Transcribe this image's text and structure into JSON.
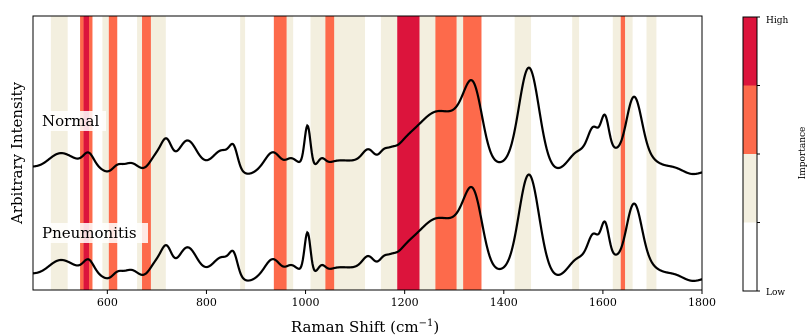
{
  "chart_data": {
    "type": "line",
    "xlabel": "Raman Shift (cm$^{-1}$)",
    "xlabel_main": "Raman Shift (cm",
    "xlabel_sup": "−1",
    "xlabel_close": ")",
    "ylabel": "Arbitrary Intensity",
    "xlim": [
      450,
      1800
    ],
    "ylim": [
      0,
      1
    ],
    "x_ticks": [
      600,
      800,
      1000,
      1200,
      1400,
      1600,
      1800
    ],
    "x_tick_labels": [
      "600",
      "800",
      "1000",
      "1200",
      "1400",
      "1600",
      "1800"
    ],
    "traces": [
      {
        "label": "Normal",
        "offset": 0.44
      },
      {
        "label": "Pneumonitis",
        "offset": 0.05
      }
    ],
    "importance_colorbar": {
      "title": "Importance",
      "high_label": "High",
      "low_label": "Low",
      "levels": [
        {
          "level": 0,
          "color": "#ffffff"
        },
        {
          "level": 1,
          "color": "#f3efdf"
        },
        {
          "level": 2,
          "color": "#fd6a4b"
        },
        {
          "level": 3,
          "color": "#dc143c"
        }
      ]
    },
    "importance_bands": [
      {
        "x0": 486,
        "x1": 520,
        "level": 1
      },
      {
        "x0": 545,
        "x1": 552,
        "level": 2
      },
      {
        "x0": 552,
        "x1": 563,
        "level": 3
      },
      {
        "x0": 563,
        "x1": 570,
        "level": 2
      },
      {
        "x0": 590,
        "x1": 603,
        "level": 1
      },
      {
        "x0": 603,
        "x1": 620,
        "level": 2
      },
      {
        "x0": 660,
        "x1": 670,
        "level": 1
      },
      {
        "x0": 670,
        "x1": 688,
        "level": 2
      },
      {
        "x0": 688,
        "x1": 718,
        "level": 1
      },
      {
        "x0": 868,
        "x1": 878,
        "level": 1
      },
      {
        "x0": 936,
        "x1": 962,
        "level": 2
      },
      {
        "x0": 962,
        "x1": 975,
        "level": 1
      },
      {
        "x0": 1010,
        "x1": 1040,
        "level": 1
      },
      {
        "x0": 1040,
        "x1": 1058,
        "level": 2
      },
      {
        "x0": 1058,
        "x1": 1120,
        "level": 1
      },
      {
        "x0": 1152,
        "x1": 1185,
        "level": 1
      },
      {
        "x0": 1185,
        "x1": 1230,
        "level": 3
      },
      {
        "x0": 1230,
        "x1": 1262,
        "level": 1
      },
      {
        "x0": 1262,
        "x1": 1305,
        "level": 2
      },
      {
        "x0": 1305,
        "x1": 1318,
        "level": 1
      },
      {
        "x0": 1318,
        "x1": 1355,
        "level": 2
      },
      {
        "x0": 1422,
        "x1": 1455,
        "level": 1
      },
      {
        "x0": 1538,
        "x1": 1552,
        "level": 1
      },
      {
        "x0": 1620,
        "x1": 1636,
        "level": 1
      },
      {
        "x0": 1636,
        "x1": 1645,
        "level": 2
      },
      {
        "x0": 1645,
        "x1": 1660,
        "level": 1
      },
      {
        "x0": 1688,
        "x1": 1708,
        "level": 1
      }
    ],
    "peaks": [
      {
        "x": 480,
        "a": 0.03,
        "w": 40
      },
      {
        "x": 520,
        "a": 0.05,
        "w": 30
      },
      {
        "x": 562,
        "a": 0.06,
        "w": 10
      },
      {
        "x": 620,
        "a": 0.04,
        "w": 10
      },
      {
        "x": 650,
        "a": 0.05,
        "w": 15
      },
      {
        "x": 700,
        "a": 0.08,
        "w": 15
      },
      {
        "x": 720,
        "a": 0.12,
        "w": 10
      },
      {
        "x": 760,
        "a": 0.15,
        "w": 18
      },
      {
        "x": 830,
        "a": 0.12,
        "w": 20
      },
      {
        "x": 855,
        "a": 0.1,
        "w": 8
      },
      {
        "x": 935,
        "a": 0.1,
        "w": 15
      },
      {
        "x": 970,
        "a": 0.04,
        "w": 10
      },
      {
        "x": 1004,
        "a": 0.24,
        "w": 6
      },
      {
        "x": 1032,
        "a": 0.05,
        "w": 8
      },
      {
        "x": 1090,
        "a": 0.08,
        "w": 30
      },
      {
        "x": 1128,
        "a": 0.08,
        "w": 12
      },
      {
        "x": 1158,
        "a": 0.08,
        "w": 10
      },
      {
        "x": 1175,
        "a": 0.03,
        "w": 8
      },
      {
        "x": 1245,
        "a": 0.26,
        "w": 45
      },
      {
        "x": 1315,
        "a": 0.25,
        "w": 35
      },
      {
        "x": 1340,
        "a": 0.3,
        "w": 18
      },
      {
        "x": 1450,
        "a": 0.58,
        "w": 20
      },
      {
        "x": 1555,
        "a": 0.12,
        "w": 20
      },
      {
        "x": 1582,
        "a": 0.22,
        "w": 12
      },
      {
        "x": 1604,
        "a": 0.22,
        "w": 8
      },
      {
        "x": 1620,
        "a": 0.1,
        "w": 15
      },
      {
        "x": 1662,
        "a": 0.4,
        "w": 16
      },
      {
        "x": 1700,
        "a": 0.04,
        "w": 20
      }
    ]
  }
}
